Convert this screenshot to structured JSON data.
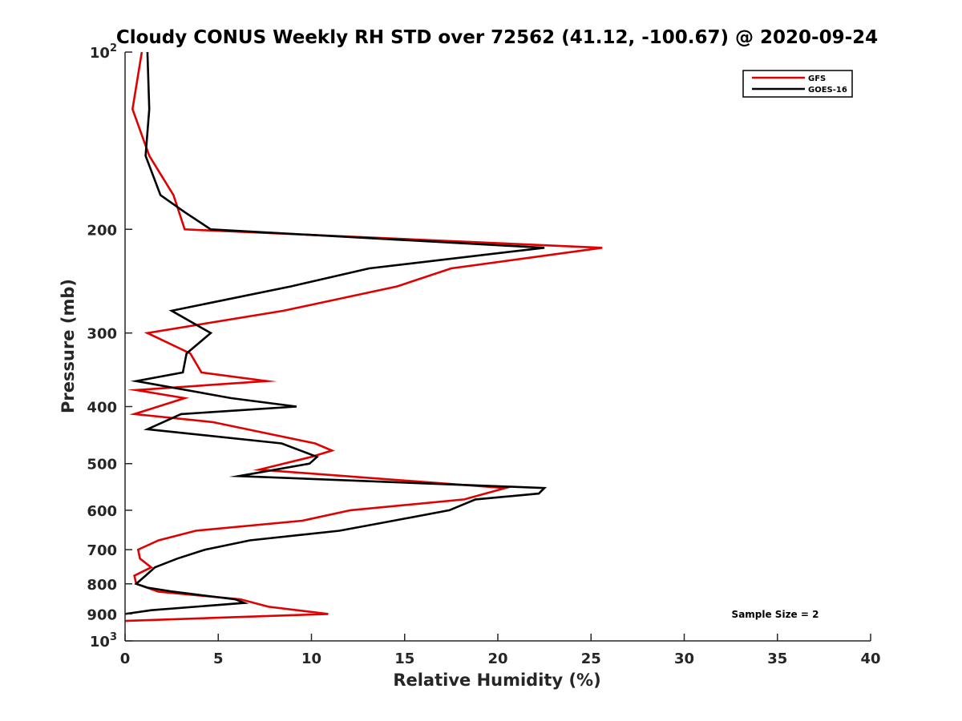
{
  "chart_data": {
    "type": "line",
    "title": "Cloudy CONUS Weekly RH STD over 72562 (41.12, -100.67) @ 2020-09-24",
    "xlabel": "Relative Humidity (%)",
    "ylabel": "Pressure (mb)",
    "xlim": [
      0,
      40
    ],
    "ylim": [
      100,
      1000
    ],
    "y_scale": "log",
    "y_reversed": true,
    "grid": false,
    "legend_position": "top-right",
    "x_ticks": [
      "0",
      "5",
      "10",
      "15",
      "20",
      "25",
      "30",
      "35",
      "40"
    ],
    "y_ticks": [
      {
        "base": "10",
        "exp": "2",
        "value": 100
      },
      {
        "base": "200",
        "exp": "",
        "value": 200
      },
      {
        "base": "300",
        "exp": "",
        "value": 300
      },
      {
        "base": "400",
        "exp": "",
        "value": 400
      },
      {
        "base": "500",
        "exp": "",
        "value": 500
      },
      {
        "base": "600",
        "exp": "",
        "value": 600
      },
      {
        "base": "700",
        "exp": "",
        "value": 700
      },
      {
        "base": "800",
        "exp": "",
        "value": 800
      },
      {
        "base": "900",
        "exp": "",
        "value": 900
      },
      {
        "base": "10",
        "exp": "3",
        "value": 1000
      }
    ],
    "series": [
      {
        "name": "GFS",
        "color": "#e00000",
        "points": [
          [
            0.9,
            100
          ],
          [
            0.4,
            125
          ],
          [
            1.3,
            150
          ],
          [
            2.6,
            175
          ],
          [
            3.2,
            200
          ],
          [
            25.6,
            215
          ],
          [
            17.5,
            233
          ],
          [
            14.6,
            250
          ],
          [
            8.5,
            275
          ],
          [
            1.2,
            300
          ],
          [
            3.5,
            325
          ],
          [
            4.1,
            350
          ],
          [
            7.6,
            362
          ],
          [
            0.6,
            375
          ],
          [
            3.2,
            387
          ],
          [
            0.5,
            412
          ],
          [
            4.7,
            425
          ],
          [
            10.2,
            462
          ],
          [
            11.1,
            475
          ],
          [
            10.0,
            487
          ],
          [
            7.2,
            512
          ],
          [
            20.4,
            550
          ],
          [
            18.2,
            575
          ],
          [
            12.1,
            600
          ],
          [
            9.5,
            625
          ],
          [
            3.8,
            650
          ],
          [
            1.8,
            675
          ],
          [
            0.7,
            700
          ],
          [
            0.8,
            725
          ],
          [
            1.4,
            750
          ],
          [
            0.5,
            775
          ],
          [
            0.6,
            800
          ],
          [
            1.8,
            825
          ],
          [
            6.2,
            850
          ],
          [
            7.7,
            875
          ],
          [
            10.9,
            900
          ],
          [
            0.0,
            925
          ]
        ]
      },
      {
        "name": "GOES-16",
        "color": "#000000",
        "points": [
          [
            1.2,
            100
          ],
          [
            1.3,
            125
          ],
          [
            1.1,
            150
          ],
          [
            1.9,
            175
          ],
          [
            3.2,
            187
          ],
          [
            4.6,
            200
          ],
          [
            22.5,
            215
          ],
          [
            13.1,
            233
          ],
          [
            8.9,
            250
          ],
          [
            2.5,
            275
          ],
          [
            4.6,
            300
          ],
          [
            3.3,
            325
          ],
          [
            3.1,
            350
          ],
          [
            0.6,
            362
          ],
          [
            5.7,
            387
          ],
          [
            9.2,
            400
          ],
          [
            3.0,
            412
          ],
          [
            1.2,
            437
          ],
          [
            8.4,
            462
          ],
          [
            10.3,
            487
          ],
          [
            9.9,
            500
          ],
          [
            6.1,
            525
          ],
          [
            22.5,
            550
          ],
          [
            22.2,
            562
          ],
          [
            18.8,
            575
          ],
          [
            17.4,
            600
          ],
          [
            14.4,
            625
          ],
          [
            11.5,
            650
          ],
          [
            6.7,
            675
          ],
          [
            4.3,
            700
          ],
          [
            2.8,
            725
          ],
          [
            1.6,
            750
          ],
          [
            1.1,
            775
          ],
          [
            0.6,
            800
          ],
          [
            1.2,
            812
          ],
          [
            2.6,
            825
          ],
          [
            5.9,
            850
          ],
          [
            6.4,
            862
          ],
          [
            1.4,
            887
          ],
          [
            0.0,
            900
          ]
        ]
      }
    ],
    "annotation": "Sample Size = 2"
  }
}
